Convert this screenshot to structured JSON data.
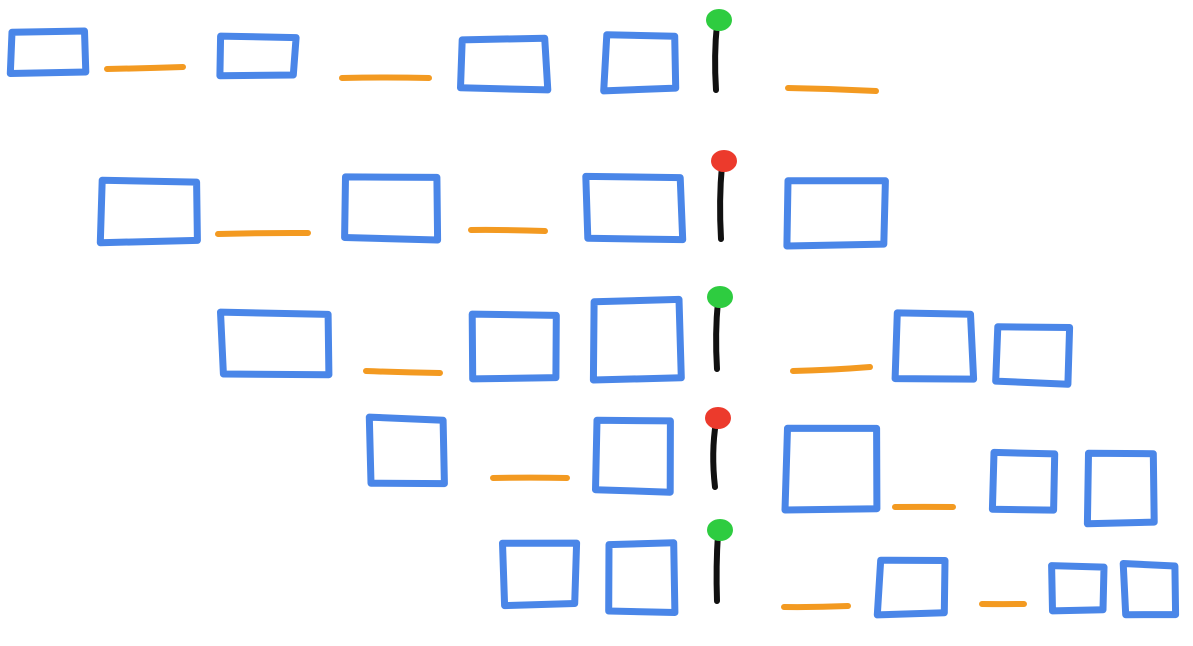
{
  "colors": {
    "box": "#4a86e8",
    "gap": "#f39a21",
    "pin_stem": "#111111",
    "pin_green": "#2ecc40",
    "pin_red": "#ec3a2c"
  },
  "rows": [
    {
      "pin_state": "green",
      "sequence": [
        "box",
        "gap",
        "box",
        "gap",
        "box",
        "box",
        "pin",
        "gap"
      ]
    },
    {
      "pin_state": "red",
      "sequence": [
        "box",
        "gap",
        "box",
        "gap",
        "box",
        "pin",
        "box"
      ]
    },
    {
      "pin_state": "green",
      "sequence": [
        "box",
        "gap",
        "box",
        "box",
        "pin",
        "gap",
        "box",
        "box"
      ]
    },
    {
      "pin_state": "red",
      "sequence": [
        "box",
        "gap",
        "box",
        "pin",
        "box",
        "gap",
        "box",
        "box"
      ]
    },
    {
      "pin_state": "green",
      "sequence": [
        "box",
        "box",
        "pin",
        "gap",
        "box",
        "gap",
        "box",
        "box"
      ]
    }
  ]
}
